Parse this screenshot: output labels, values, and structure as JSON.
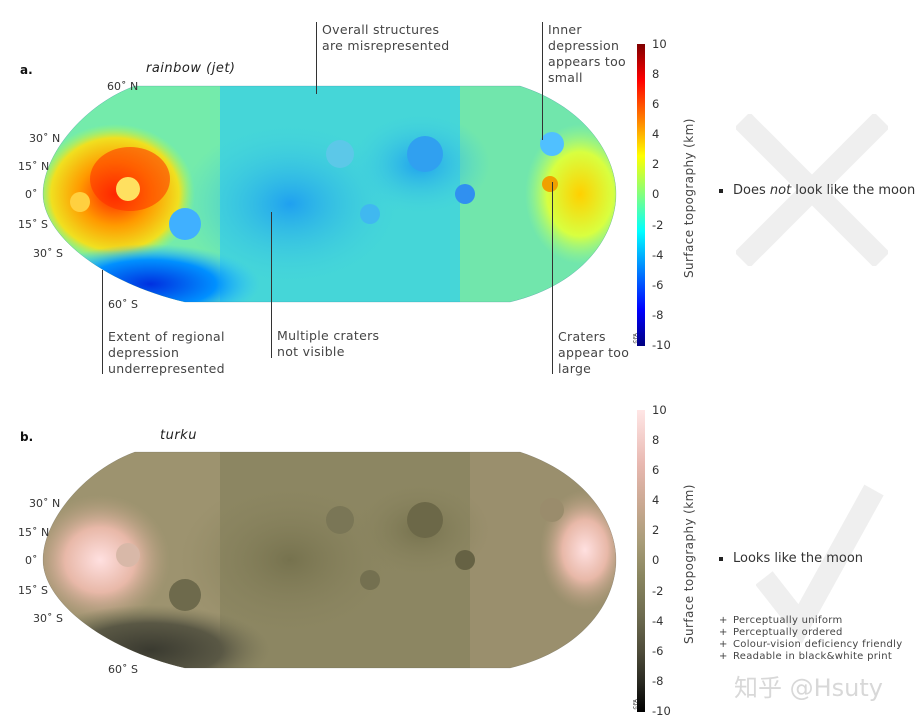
{
  "panel_a": {
    "letter": "a.",
    "colormap": "rainbow (jet)",
    "lat_labels": [
      "60˚ N",
      "30˚ N",
      "15˚ N",
      "0˚",
      "15˚ S",
      "30˚ S",
      "60˚ S"
    ],
    "annotations": {
      "top_center": [
        "Overall structures",
        "are misrepresented"
      ],
      "top_right": [
        "Inner",
        "depression",
        "appears too",
        "small"
      ],
      "bottom_left": [
        "Extent of regional",
        "depression",
        "underrepresented"
      ],
      "bottom_center": [
        "Multiple craters",
        "not visible"
      ],
      "bottom_right": [
        "Craters",
        "appear too",
        "large"
      ]
    },
    "colorbar": {
      "label": "Surface topography (km)",
      "ticks": [
        "10",
        "8",
        "6",
        "4",
        "2",
        "0",
        "-2",
        "-4",
        "-6",
        "-8",
        "-10"
      ],
      "logo": "©FA"
    },
    "verdict_prefix": "Does ",
    "verdict_emph": "not",
    "verdict_suffix": " look like the moon",
    "mark": "cross"
  },
  "panel_b": {
    "letter": "b.",
    "colormap": "turku",
    "lat_labels": [
      "30˚ N",
      "15˚ N",
      "0˚",
      "15˚ S",
      "30˚ S",
      "60˚ S"
    ],
    "colorbar": {
      "label": "Surface topography (km)",
      "ticks": [
        "10",
        "8",
        "6",
        "4",
        "2",
        "0",
        "-2",
        "-4",
        "-6",
        "-8",
        "-10"
      ],
      "logo": "©FA"
    },
    "verdict": "Looks like the moon",
    "properties": [
      "Perceptually uniform",
      "Perceptually ordered",
      "Colour-vision deficiency friendly",
      "Readable in black&white print"
    ],
    "plus_symbol": "+",
    "mark": "check"
  },
  "watermark": "知乎 @Hsuty",
  "colors": {
    "jet_low": "#00007f",
    "jet_mid": "#3ccfd8",
    "jet_high": "#7f0000",
    "turku_low": "#000000",
    "turku_mid": "#8a8660",
    "turku_high": "#ffe6e6"
  }
}
